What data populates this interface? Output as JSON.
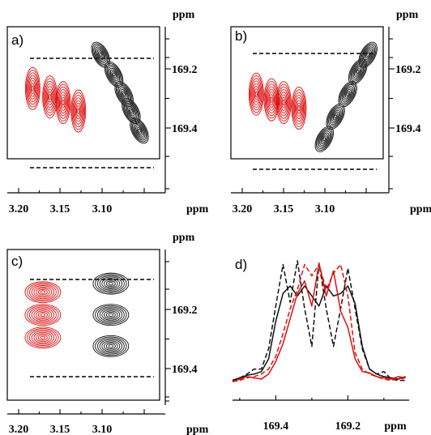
{
  "chart_data": [
    {
      "panel": "a)",
      "type": "contour",
      "unit_x": "ppm",
      "unit_y": "ppm",
      "x_ticks": [
        "3.20",
        "3.15",
        "3.10"
      ],
      "y_ticks": [
        "169.2",
        "169.4"
      ],
      "xlim": [
        3.2,
        3.05
      ],
      "ylim": [
        169.08,
        169.55
      ],
      "dashed_lines_y": [
        169.15,
        169.52
      ],
      "series": [
        {
          "color": "#dd1111",
          "peaks": [
            [
              3.175,
              169.3
            ],
            [
              3.158,
              169.33
            ],
            [
              3.145,
              169.35
            ],
            [
              3.13,
              169.38
            ]
          ]
        },
        {
          "color": "#111111",
          "peaks": [
            [
              3.108,
              169.18
            ],
            [
              3.095,
              169.25
            ],
            [
              3.085,
              169.32
            ],
            [
              3.078,
              169.38
            ],
            [
              3.07,
              169.45
            ]
          ]
        }
      ]
    },
    {
      "panel": "b)",
      "type": "contour",
      "unit_x": "ppm",
      "unit_y": "ppm",
      "x_ticks": [
        "3.20",
        "3.15",
        "3.10"
      ],
      "y_ticks": [
        "169.2",
        "169.4"
      ],
      "xlim": [
        3.2,
        3.05
      ],
      "ylim": [
        169.08,
        169.55
      ],
      "dashed_lines_y": [
        169.13,
        169.53
      ],
      "series": [
        {
          "color": "#dd1111",
          "peaks": [
            [
              3.175,
              169.32
            ],
            [
              3.16,
              169.34
            ],
            [
              3.148,
              169.35
            ],
            [
              3.133,
              169.37
            ]
          ]
        },
        {
          "color": "#111111",
          "peaks": [
            [
              3.108,
              169.48
            ],
            [
              3.097,
              169.4
            ],
            [
              3.085,
              169.32
            ],
            [
              3.075,
              169.24
            ],
            [
              3.065,
              169.18
            ]
          ]
        }
      ]
    },
    {
      "panel": "c)",
      "type": "contour",
      "unit_x": "ppm",
      "unit_y": "ppm",
      "x_ticks": [
        "3.20",
        "3.15",
        "3.10"
      ],
      "y_ticks": [
        "169.2",
        "169.4"
      ],
      "xlim": [
        3.2,
        3.05
      ],
      "ylim": [
        169.0,
        169.53
      ],
      "dashed_lines_y": [
        169.06,
        169.41
      ],
      "series": [
        {
          "color": "#dd1111",
          "peaks": [
            [
              3.165,
              169.15
            ],
            [
              3.165,
              169.23
            ],
            [
              3.165,
              169.31
            ]
          ]
        },
        {
          "color": "#111111",
          "peaks": [
            [
              3.098,
              169.12
            ],
            [
              3.098,
              169.23
            ],
            [
              3.098,
              169.34
            ]
          ]
        }
      ]
    },
    {
      "panel": "d)",
      "type": "line",
      "unit_x": "ppm",
      "x_ticks": [
        "169.4",
        "169.2"
      ],
      "xlim": [
        169.52,
        169.03
      ],
      "ylim": [
        -0.05,
        1.05
      ],
      "series": [
        {
          "color": "#111111",
          "style": "solid",
          "x": [
            169.52,
            169.5,
            169.48,
            169.46,
            169.44,
            169.42,
            169.4,
            169.38,
            169.36,
            169.34,
            169.32,
            169.3,
            169.28,
            169.26,
            169.24,
            169.22,
            169.2,
            169.18,
            169.16,
            169.14,
            169.12,
            169.1,
            169.08,
            169.06,
            169.04
          ],
          "y": [
            0.03,
            0.05,
            0.07,
            0.08,
            0.1,
            0.2,
            0.5,
            0.72,
            0.78,
            0.7,
            0.78,
            0.7,
            0.62,
            0.78,
            0.7,
            0.72,
            0.78,
            0.64,
            0.3,
            0.12,
            0.08,
            0.06,
            0.05,
            0.04,
            0.06
          ]
        },
        {
          "color": "#111111",
          "style": "dashed",
          "x": [
            169.52,
            169.5,
            169.48,
            169.46,
            169.44,
            169.42,
            169.4,
            169.38,
            169.36,
            169.34,
            169.32,
            169.3,
            169.28,
            169.26,
            169.24,
            169.22,
            169.2,
            169.18,
            169.16,
            169.14,
            169.12,
            169.1,
            169.08,
            169.06,
            169.04
          ],
          "y": [
            0.03,
            0.05,
            0.08,
            0.12,
            0.12,
            0.28,
            0.62,
            0.95,
            0.65,
            0.98,
            0.6,
            0.3,
            0.96,
            0.6,
            0.3,
            0.6,
            0.92,
            0.6,
            0.28,
            0.12,
            0.08,
            0.1,
            0.04,
            0.03,
            0.03
          ]
        },
        {
          "color": "#dd1111",
          "style": "solid",
          "x": [
            169.52,
            169.5,
            169.48,
            169.46,
            169.44,
            169.42,
            169.4,
            169.38,
            169.36,
            169.34,
            169.32,
            169.3,
            169.28,
            169.26,
            169.24,
            169.22,
            169.2,
            169.18,
            169.16,
            169.14,
            169.12,
            169.1,
            169.08,
            169.06,
            169.04
          ],
          "y": [
            0.02,
            0.04,
            0.06,
            0.05,
            0.04,
            0.08,
            0.18,
            0.32,
            0.52,
            0.72,
            0.82,
            0.62,
            0.96,
            0.7,
            0.9,
            0.58,
            0.45,
            0.2,
            0.1,
            0.09,
            0.06,
            0.05,
            0.04,
            0.06,
            0.05
          ]
        },
        {
          "color": "#dd1111",
          "style": "dashed",
          "x": [
            169.52,
            169.5,
            169.48,
            169.46,
            169.44,
            169.42,
            169.4,
            169.38,
            169.36,
            169.34,
            169.32,
            169.3,
            169.28,
            169.26,
            169.24,
            169.22,
            169.2,
            169.18,
            169.16,
            169.14,
            169.12,
            169.1,
            169.08,
            169.06,
            169.04
          ],
          "y": [
            0.02,
            0.03,
            0.05,
            0.06,
            0.08,
            0.12,
            0.22,
            0.4,
            0.6,
            0.75,
            0.95,
            0.86,
            0.95,
            0.75,
            0.88,
            0.95,
            0.7,
            0.25,
            0.12,
            0.08,
            0.06,
            0.04,
            0.03,
            0.05,
            0.04
          ]
        }
      ]
    }
  ]
}
